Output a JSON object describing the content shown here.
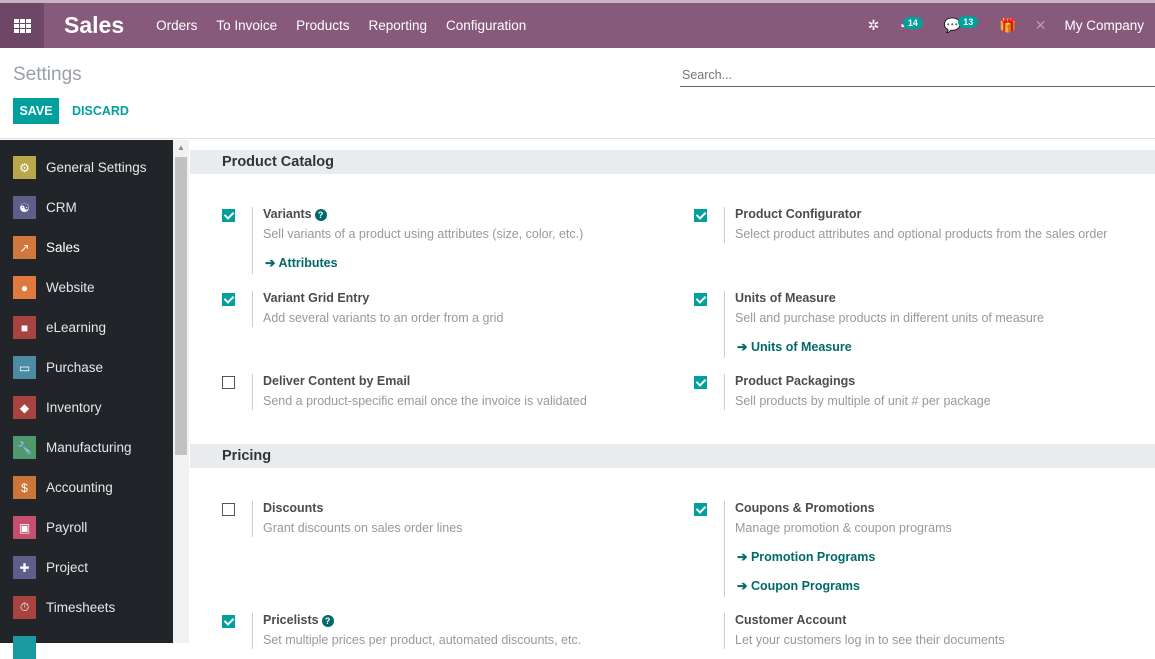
{
  "navbar": {
    "app": "Sales",
    "menu": [
      "Orders",
      "To Invoice",
      "Products",
      "Reporting",
      "Configuration"
    ],
    "activity_count": "14",
    "message_count": "13",
    "company": "My Company",
    "icons": [
      "bug-icon",
      "clock-icon",
      "chat-icon",
      "gift-icon",
      "tools-icon"
    ]
  },
  "control_panel": {
    "title": "Settings",
    "save": "SAVE",
    "discard": "DISCARD",
    "search_placeholder": "Search..."
  },
  "sidebar": {
    "items": [
      {
        "label": "General Settings",
        "icon": "⚙",
        "color": "#b9a84a"
      },
      {
        "label": "CRM",
        "icon": "☯",
        "color": "#5d5f8a"
      },
      {
        "label": "Sales",
        "icon": "↗",
        "color": "#d2783f"
      },
      {
        "label": "Website",
        "icon": "●",
        "color": "#e07a3c"
      },
      {
        "label": "eLearning",
        "icon": "■",
        "color": "#a8433f"
      },
      {
        "label": "Purchase",
        "icon": "▭",
        "color": "#4d8ba3"
      },
      {
        "label": "Inventory",
        "icon": "◆",
        "color": "#a8433f"
      },
      {
        "label": "Manufacturing",
        "icon": "🔧",
        "color": "#4f9a6d"
      },
      {
        "label": "Accounting",
        "icon": "$",
        "color": "#cc743a"
      },
      {
        "label": "Payroll",
        "icon": "▣",
        "color": "#c54f6f"
      },
      {
        "label": "Project",
        "icon": "✚",
        "color": "#5d5f8a"
      },
      {
        "label": "Timesheets",
        "icon": "⏱",
        "color": "#a8433f"
      },
      {
        "label": "",
        "icon": "",
        "color": "#1a9aa0"
      }
    ]
  },
  "sections": [
    {
      "title": "Product Catalog",
      "settings": [
        {
          "title": "Variants",
          "checked": true,
          "help": true,
          "desc": "Sell variants of a product using attributes (size, color, etc.)",
          "links": [
            "Attributes"
          ]
        },
        {
          "title": "Product Configurator",
          "checked": true,
          "desc": "Select product attributes and optional products from the sales order",
          "links": []
        },
        {
          "title": "Variant Grid Entry",
          "checked": true,
          "desc": "Add several variants to an order from a grid",
          "links": []
        },
        {
          "title": "Units of Measure",
          "checked": true,
          "desc": "Sell and purchase products in different units of measure",
          "links": [
            "Units of Measure"
          ]
        },
        {
          "title": "Deliver Content by Email",
          "checked": false,
          "desc": "Send a product-specific email once the invoice is validated",
          "links": []
        },
        {
          "title": "Product Packagings",
          "checked": true,
          "desc": "Sell products by multiple of unit # per package",
          "links": []
        }
      ]
    },
    {
      "title": "Pricing",
      "settings": [
        {
          "title": "Discounts",
          "checked": false,
          "desc": "Grant discounts on sales order lines",
          "links": []
        },
        {
          "title": "Coupons & Promotions",
          "checked": true,
          "desc": "Manage promotion & coupon programs",
          "links": [
            "Promotion Programs",
            "Coupon Programs"
          ]
        },
        {
          "title": "Pricelists",
          "checked": true,
          "help": true,
          "desc": "Set multiple prices per product, automated discounts, etc.",
          "links": []
        },
        {
          "title": "Customer Account",
          "checkbox": false,
          "desc": "Let your customers log in to see their documents",
          "links": []
        }
      ]
    }
  ],
  "colors": {
    "navbar": "#875a7b",
    "accent": "#00a09d",
    "link": "#00696a",
    "sidebar": "#212529"
  }
}
